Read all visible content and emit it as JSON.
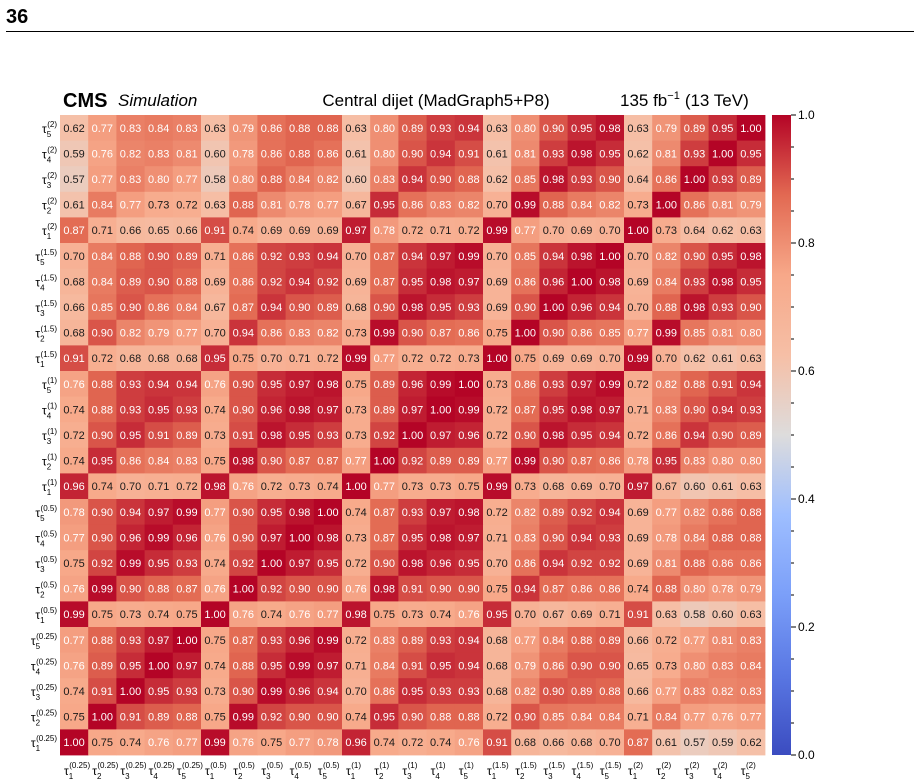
{
  "page": {
    "number": "36"
  },
  "chart_data": {
    "type": "heatmap",
    "header": {
      "cms": "CMS",
      "simulation": "Simulation",
      "title": "Central dijet (MadGraph5+P8)",
      "lumi": "135 fb",
      "lumi_sup": "−1",
      "energy": "(13 TeV)"
    },
    "x_labels": [
      {
        "sub": "1",
        "sup": "(0.25)"
      },
      {
        "sub": "2",
        "sup": "(0.25)"
      },
      {
        "sub": "3",
        "sup": "(0.25)"
      },
      {
        "sub": "4",
        "sup": "(0.25)"
      },
      {
        "sub": "5",
        "sup": "(0.25)"
      },
      {
        "sub": "1",
        "sup": "(0.5)"
      },
      {
        "sub": "2",
        "sup": "(0.5)"
      },
      {
        "sub": "3",
        "sup": "(0.5)"
      },
      {
        "sub": "4",
        "sup": "(0.5)"
      },
      {
        "sub": "5",
        "sup": "(0.5)"
      },
      {
        "sub": "1",
        "sup": "(1)"
      },
      {
        "sub": "2",
        "sup": "(1)"
      },
      {
        "sub": "3",
        "sup": "(1)"
      },
      {
        "sub": "4",
        "sup": "(1)"
      },
      {
        "sub": "5",
        "sup": "(1)"
      },
      {
        "sub": "1",
        "sup": "(1.5)"
      },
      {
        "sub": "2",
        "sup": "(1.5)"
      },
      {
        "sub": "3",
        "sup": "(1.5)"
      },
      {
        "sub": "4",
        "sup": "(1.5)"
      },
      {
        "sub": "5",
        "sup": "(1.5)"
      },
      {
        "sub": "1",
        "sup": "(2)"
      },
      {
        "sub": "2",
        "sup": "(2)"
      },
      {
        "sub": "3",
        "sup": "(2)"
      },
      {
        "sub": "4",
        "sup": "(2)"
      },
      {
        "sub": "5",
        "sup": "(2)"
      }
    ],
    "y_labels_top_to_bottom": [
      {
        "sub": "5",
        "sup": "(2)"
      },
      {
        "sub": "4",
        "sup": "(2)"
      },
      {
        "sub": "3",
        "sup": "(2)"
      },
      {
        "sub": "2",
        "sup": "(2)"
      },
      {
        "sub": "1",
        "sup": "(2)"
      },
      {
        "sub": "5",
        "sup": "(1.5)"
      },
      {
        "sub": "4",
        "sup": "(1.5)"
      },
      {
        "sub": "3",
        "sup": "(1.5)"
      },
      {
        "sub": "2",
        "sup": "(1.5)"
      },
      {
        "sub": "1",
        "sup": "(1.5)"
      },
      {
        "sub": "5",
        "sup": "(1)"
      },
      {
        "sub": "4",
        "sup": "(1)"
      },
      {
        "sub": "3",
        "sup": "(1)"
      },
      {
        "sub": "2",
        "sup": "(1)"
      },
      {
        "sub": "1",
        "sup": "(1)"
      },
      {
        "sub": "5",
        "sup": "(0.5)"
      },
      {
        "sub": "4",
        "sup": "(0.5)"
      },
      {
        "sub": "3",
        "sup": "(0.5)"
      },
      {
        "sub": "2",
        "sup": "(0.5)"
      },
      {
        "sub": "1",
        "sup": "(0.5)"
      },
      {
        "sub": "5",
        "sup": "(0.25)"
      },
      {
        "sub": "4",
        "sup": "(0.25)"
      },
      {
        "sub": "3",
        "sup": "(0.25)"
      },
      {
        "sub": "2",
        "sup": "(0.25)"
      },
      {
        "sub": "1",
        "sup": "(0.25)"
      }
    ],
    "values_rows_top_to_bottom": [
      [
        0.62,
        0.77,
        0.83,
        0.84,
        0.83,
        0.63,
        0.79,
        0.86,
        0.88,
        0.88,
        0.63,
        0.8,
        0.89,
        0.93,
        0.94,
        0.63,
        0.8,
        0.9,
        0.95,
        0.98,
        0.63,
        0.79,
        0.89,
        0.95,
        1.0
      ],
      [
        0.59,
        0.76,
        0.82,
        0.83,
        0.81,
        0.6,
        0.78,
        0.86,
        0.88,
        0.86,
        0.61,
        0.8,
        0.9,
        0.94,
        0.91,
        0.61,
        0.81,
        0.93,
        0.98,
        0.95,
        0.62,
        0.81,
        0.93,
        1.0,
        0.95
      ],
      [
        0.57,
        0.77,
        0.83,
        0.8,
        0.77,
        0.58,
        0.8,
        0.88,
        0.84,
        0.82,
        0.6,
        0.83,
        0.94,
        0.9,
        0.88,
        0.62,
        0.85,
        0.98,
        0.93,
        0.9,
        0.64,
        0.86,
        1.0,
        0.93,
        0.89
      ],
      [
        0.61,
        0.84,
        0.77,
        0.73,
        0.72,
        0.63,
        0.88,
        0.81,
        0.78,
        0.77,
        0.67,
        0.95,
        0.86,
        0.83,
        0.82,
        0.7,
        0.99,
        0.88,
        0.84,
        0.82,
        0.73,
        1.0,
        0.86,
        0.81,
        0.79
      ],
      [
        0.87,
        0.71,
        0.66,
        0.65,
        0.66,
        0.91,
        0.74,
        0.69,
        0.69,
        0.69,
        0.97,
        0.78,
        0.72,
        0.71,
        0.72,
        0.99,
        0.77,
        0.7,
        0.69,
        0.7,
        1.0,
        0.73,
        0.64,
        0.62,
        0.63
      ],
      [
        0.7,
        0.84,
        0.88,
        0.9,
        0.89,
        0.71,
        0.86,
        0.92,
        0.93,
        0.94,
        0.7,
        0.87,
        0.94,
        0.97,
        0.99,
        0.7,
        0.85,
        0.94,
        0.98,
        1.0,
        0.7,
        0.82,
        0.9,
        0.95,
        0.98
      ],
      [
        0.68,
        0.84,
        0.89,
        0.9,
        0.88,
        0.69,
        0.86,
        0.92,
        0.94,
        0.92,
        0.69,
        0.87,
        0.95,
        0.98,
        0.97,
        0.69,
        0.86,
        0.96,
        1.0,
        0.98,
        0.69,
        0.84,
        0.93,
        0.98,
        0.95
      ],
      [
        0.66,
        0.85,
        0.9,
        0.86,
        0.84,
        0.67,
        0.87,
        0.94,
        0.9,
        0.89,
        0.68,
        0.9,
        0.98,
        0.95,
        0.93,
        0.69,
        0.9,
        1.0,
        0.96,
        0.94,
        0.7,
        0.88,
        0.98,
        0.93,
        0.9
      ],
      [
        0.68,
        0.9,
        0.82,
        0.79,
        0.77,
        0.7,
        0.94,
        0.86,
        0.83,
        0.82,
        0.73,
        0.99,
        0.9,
        0.87,
        0.86,
        0.75,
        1.0,
        0.9,
        0.86,
        0.85,
        0.77,
        0.99,
        0.85,
        0.81,
        0.8
      ],
      [
        0.91,
        0.72,
        0.68,
        0.68,
        0.68,
        0.95,
        0.75,
        0.7,
        0.71,
        0.72,
        0.99,
        0.77,
        0.72,
        0.72,
        0.73,
        1.0,
        0.75,
        0.69,
        0.69,
        0.7,
        0.99,
        0.7,
        0.62,
        0.61,
        0.63
      ],
      [
        0.76,
        0.88,
        0.93,
        0.94,
        0.94,
        0.76,
        0.9,
        0.95,
        0.97,
        0.98,
        0.75,
        0.89,
        0.96,
        0.99,
        1.0,
        0.73,
        0.86,
        0.93,
        0.97,
        0.99,
        0.72,
        0.82,
        0.88,
        0.91,
        0.94
      ],
      [
        0.74,
        0.88,
        0.93,
        0.95,
        0.93,
        0.74,
        0.9,
        0.96,
        0.98,
        0.97,
        0.73,
        0.89,
        0.97,
        1.0,
        0.99,
        0.72,
        0.87,
        0.95,
        0.98,
        0.97,
        0.71,
        0.83,
        0.9,
        0.94,
        0.93
      ],
      [
        0.72,
        0.9,
        0.95,
        0.91,
        0.89,
        0.73,
        0.91,
        0.98,
        0.95,
        0.93,
        0.73,
        0.92,
        1.0,
        0.97,
        0.96,
        0.72,
        0.9,
        0.98,
        0.95,
        0.94,
        0.72,
        0.86,
        0.94,
        0.9,
        0.89
      ],
      [
        0.74,
        0.95,
        0.86,
        0.84,
        0.83,
        0.75,
        0.98,
        0.9,
        0.87,
        0.87,
        0.77,
        1.0,
        0.92,
        0.89,
        0.89,
        0.77,
        0.99,
        0.9,
        0.87,
        0.86,
        0.78,
        0.95,
        0.83,
        0.8,
        0.8
      ],
      [
        0.96,
        0.74,
        0.7,
        0.71,
        0.72,
        0.98,
        0.76,
        0.72,
        0.73,
        0.74,
        1.0,
        0.77,
        0.73,
        0.73,
        0.75,
        0.99,
        0.73,
        0.68,
        0.69,
        0.7,
        0.97,
        0.67,
        0.6,
        0.61,
        0.63
      ],
      [
        0.78,
        0.9,
        0.94,
        0.97,
        0.99,
        0.77,
        0.9,
        0.95,
        0.98,
        1.0,
        0.74,
        0.87,
        0.93,
        0.97,
        0.98,
        0.72,
        0.82,
        0.89,
        0.92,
        0.94,
        0.69,
        0.77,
        0.82,
        0.86,
        0.88
      ],
      [
        0.77,
        0.9,
        0.96,
        0.99,
        0.96,
        0.76,
        0.9,
        0.97,
        1.0,
        0.98,
        0.73,
        0.87,
        0.95,
        0.98,
        0.97,
        0.71,
        0.83,
        0.9,
        0.94,
        0.93,
        0.69,
        0.78,
        0.84,
        0.88,
        0.88
      ],
      [
        0.75,
        0.92,
        0.99,
        0.95,
        0.93,
        0.74,
        0.92,
        1.0,
        0.97,
        0.95,
        0.72,
        0.9,
        0.98,
        0.96,
        0.95,
        0.7,
        0.86,
        0.94,
        0.92,
        0.92,
        0.69,
        0.81,
        0.88,
        0.86,
        0.86
      ],
      [
        0.76,
        0.99,
        0.9,
        0.88,
        0.87,
        0.76,
        1.0,
        0.92,
        0.9,
        0.9,
        0.76,
        0.98,
        0.91,
        0.9,
        0.9,
        0.75,
        0.94,
        0.87,
        0.86,
        0.86,
        0.74,
        0.88,
        0.8,
        0.78,
        0.79
      ],
      [
        0.99,
        0.75,
        0.73,
        0.74,
        0.75,
        1.0,
        0.76,
        0.74,
        0.76,
        0.77,
        0.98,
        0.75,
        0.73,
        0.74,
        0.76,
        0.95,
        0.7,
        0.67,
        0.69,
        0.71,
        0.91,
        0.63,
        0.58,
        0.6,
        0.63
      ],
      [
        0.77,
        0.88,
        0.93,
        0.97,
        1.0,
        0.75,
        0.87,
        0.93,
        0.96,
        0.99,
        0.72,
        0.83,
        0.89,
        0.93,
        0.94,
        0.68,
        0.77,
        0.84,
        0.88,
        0.89,
        0.66,
        0.72,
        0.77,
        0.81,
        0.83
      ],
      [
        0.76,
        0.89,
        0.95,
        1.0,
        0.97,
        0.74,
        0.88,
        0.95,
        0.99,
        0.97,
        0.71,
        0.84,
        0.91,
        0.95,
        0.94,
        0.68,
        0.79,
        0.86,
        0.9,
        0.9,
        0.65,
        0.73,
        0.8,
        0.83,
        0.84
      ],
      [
        0.74,
        0.91,
        1.0,
        0.95,
        0.93,
        0.73,
        0.9,
        0.99,
        0.96,
        0.94,
        0.7,
        0.86,
        0.95,
        0.93,
        0.93,
        0.68,
        0.82,
        0.9,
        0.89,
        0.88,
        0.66,
        0.77,
        0.83,
        0.82,
        0.83
      ],
      [
        0.75,
        1.0,
        0.91,
        0.89,
        0.88,
        0.75,
        0.99,
        0.92,
        0.9,
        0.9,
        0.74,
        0.95,
        0.9,
        0.88,
        0.88,
        0.72,
        0.9,
        0.85,
        0.84,
        0.84,
        0.71,
        0.84,
        0.77,
        0.76,
        0.77
      ],
      [
        1.0,
        0.75,
        0.74,
        0.76,
        0.77,
        0.99,
        0.76,
        0.75,
        0.77,
        0.78,
        0.96,
        0.74,
        0.72,
        0.74,
        0.76,
        0.91,
        0.68,
        0.66,
        0.68,
        0.7,
        0.87,
        0.61,
        0.57,
        0.59,
        0.62
      ]
    ],
    "colorbar": {
      "range": [
        0.0,
        1.0
      ],
      "ticks": [
        0.0,
        0.2,
        0.4,
        0.6,
        0.8,
        1.0
      ],
      "tick_labels": [
        "0.0",
        "0.2",
        "0.4",
        "0.6",
        "0.8",
        "1.0"
      ],
      "colormap": "coolwarm"
    },
    "text_color_light": "#ffffff",
    "text_color_dark": "#1a1a1a"
  }
}
